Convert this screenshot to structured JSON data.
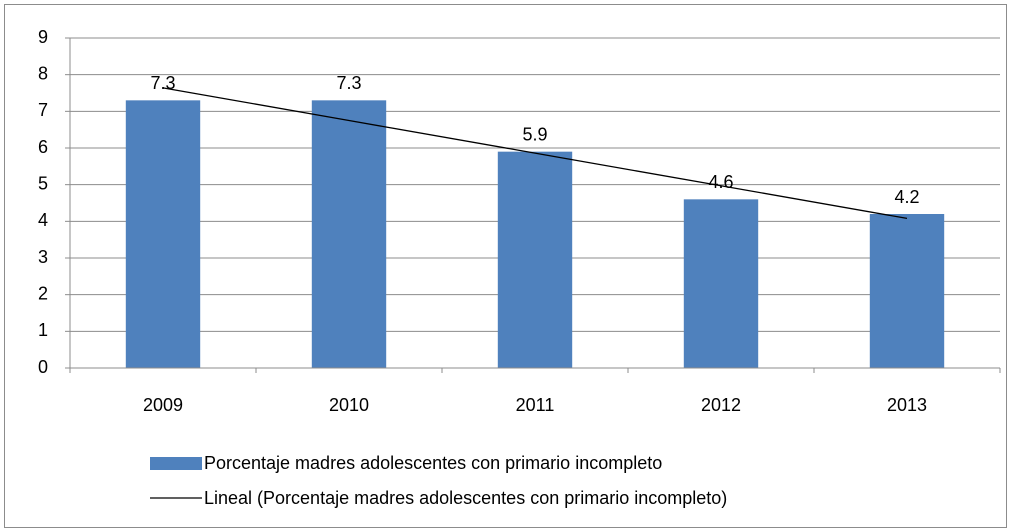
{
  "chart_data": {
    "type": "bar",
    "categories": [
      "2009",
      "2010",
      "2011",
      "2012",
      "2013"
    ],
    "series": [
      {
        "name": "Porcentaje madres adolescentes con primario incompleto",
        "color": "#4f81bd",
        "values": [
          7.3,
          7.3,
          5.9,
          4.6,
          4.2
        ]
      }
    ],
    "trendline": {
      "name": "Lineal (Porcentaje madres adolescentes con primario incompleto)",
      "color": "#000000",
      "values": [
        7.64,
        6.75,
        5.86,
        4.97,
        4.08
      ]
    },
    "ylim": [
      0,
      9
    ],
    "yticks": [
      0,
      1,
      2,
      3,
      4,
      5,
      6,
      7,
      8,
      9
    ],
    "grid": true,
    "legend": "bottom"
  }
}
